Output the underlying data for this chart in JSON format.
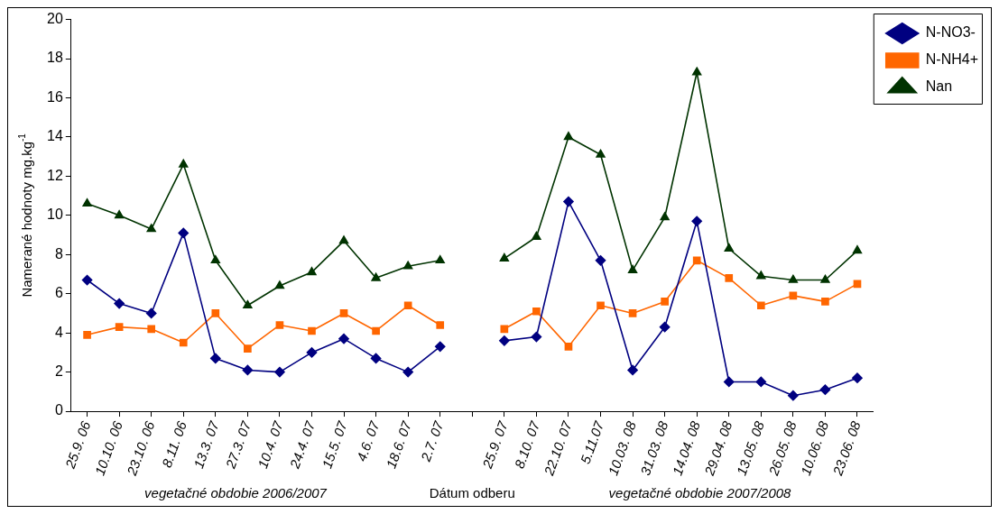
{
  "chart_data": {
    "type": "line",
    "xlabel": "Dátum odberu",
    "ylabel": "Namerané hodnoty mg.kg$^{-1}$",
    "annotations": [
      "vegetačné obdobie 2006/2007",
      "vegetačné obdobie 2007/2008"
    ],
    "categories": [
      "25.9. 06",
      "10.10. 06",
      "23.10. 06",
      "8.11. 06",
      "13.3. 07",
      "27.3. 07",
      "10.4. 07",
      "24.4. 07",
      "15.5. 07",
      "4.6. 07",
      "18.6. 07",
      "2.7. 07",
      null,
      "25.9. 07",
      "8.10. 07",
      "22.10. 07",
      "5.11.07",
      "10.03. 08",
      "31.03. 08",
      "14.04. 08",
      "29.04. 08",
      "13.05. 08",
      "26.05. 08",
      "10.06. 08",
      "23.06. 08"
    ],
    "series": [
      {
        "name": "N-NO3-",
        "color": "#000080",
        "marker": "diamond",
        "values": [
          6.7,
          5.5,
          5.0,
          9.1,
          2.7,
          2.1,
          2.0,
          3.0,
          3.7,
          2.7,
          2.0,
          3.3,
          null,
          3.6,
          3.8,
          10.7,
          7.7,
          2.1,
          4.3,
          9.7,
          1.5,
          1.5,
          0.8,
          1.1,
          1.7
        ]
      },
      {
        "name": "N-NH4+",
        "color": "#ff6600",
        "marker": "square",
        "values": [
          3.9,
          4.3,
          4.2,
          3.5,
          5.0,
          3.2,
          4.4,
          4.1,
          5.0,
          4.1,
          5.4,
          4.4,
          null,
          4.2,
          5.1,
          3.3,
          5.4,
          5.0,
          5.6,
          7.7,
          6.8,
          5.4,
          5.9,
          5.6,
          6.5
        ]
      },
      {
        "name": "Nan",
        "color": "#003300",
        "marker": "triangle",
        "values": [
          10.6,
          10.0,
          9.3,
          12.6,
          7.7,
          5.4,
          6.4,
          7.1,
          8.7,
          6.8,
          7.4,
          7.7,
          null,
          7.8,
          8.9,
          14.0,
          13.1,
          7.2,
          9.9,
          17.3,
          8.3,
          6.9,
          6.7,
          6.7,
          8.2
        ]
      }
    ],
    "ylim": [
      0,
      20
    ],
    "yticks": [
      0,
      2,
      4,
      6,
      8,
      10,
      12,
      14,
      16,
      18,
      20
    ],
    "grid": false,
    "legend": "top right",
    "line_style": "solid"
  }
}
